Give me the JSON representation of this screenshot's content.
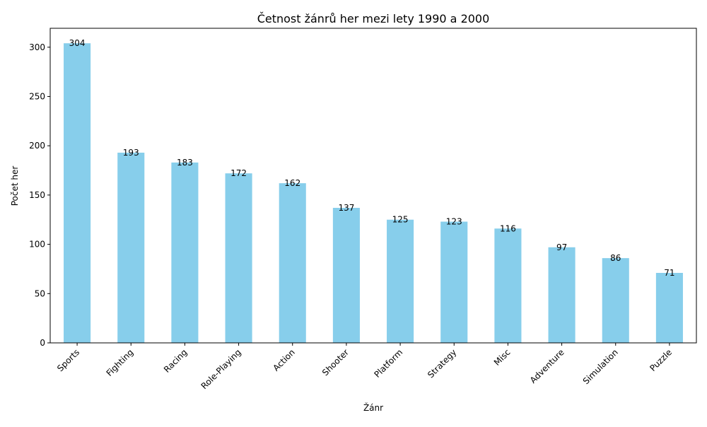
{
  "chart_data": {
    "type": "bar",
    "title": "Četnost žánrů her mezi lety 1990 a 2000",
    "xlabel": "Žánr",
    "ylabel": "Počet her",
    "categories": [
      "Sports",
      "Fighting",
      "Racing",
      "Role-Playing",
      "Action",
      "Shooter",
      "Platform",
      "Strategy",
      "Misc",
      "Adventure",
      "Simulation",
      "Puzzle"
    ],
    "values": [
      304,
      193,
      183,
      172,
      162,
      137,
      125,
      123,
      116,
      97,
      86,
      71
    ],
    "ylim": [
      0,
      319.2
    ],
    "yticks": [
      0,
      50,
      100,
      150,
      200,
      250,
      300
    ],
    "grid": false,
    "legend": "none",
    "bar_color": "#87CEEB",
    "axis_color": "#000000"
  }
}
